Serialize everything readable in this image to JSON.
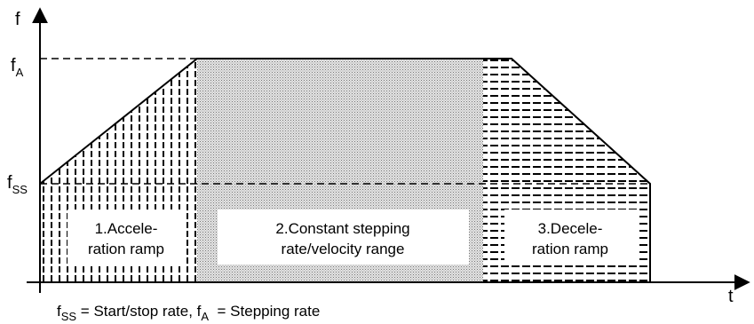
{
  "axes": {
    "y_label": "f",
    "x_label": "t",
    "fa_main": "f",
    "fa_sub": "A",
    "fss_main": "f",
    "fss_sub": "SS"
  },
  "phases": [
    {
      "line1": "1.Accele-",
      "line2": "ration ramp"
    },
    {
      "line1": "2.Constant stepping",
      "line2": "rate/velocity range"
    },
    {
      "line1": "3.Decele-",
      "line2": "ration ramp"
    }
  ],
  "legend": {
    "fss_main": "f",
    "fss_sub": "SS",
    "fss_text": " = Start/stop rate, ",
    "fa_main": "f",
    "fa_sub": "A",
    "fa_text": "  = Stepping rate"
  }
}
